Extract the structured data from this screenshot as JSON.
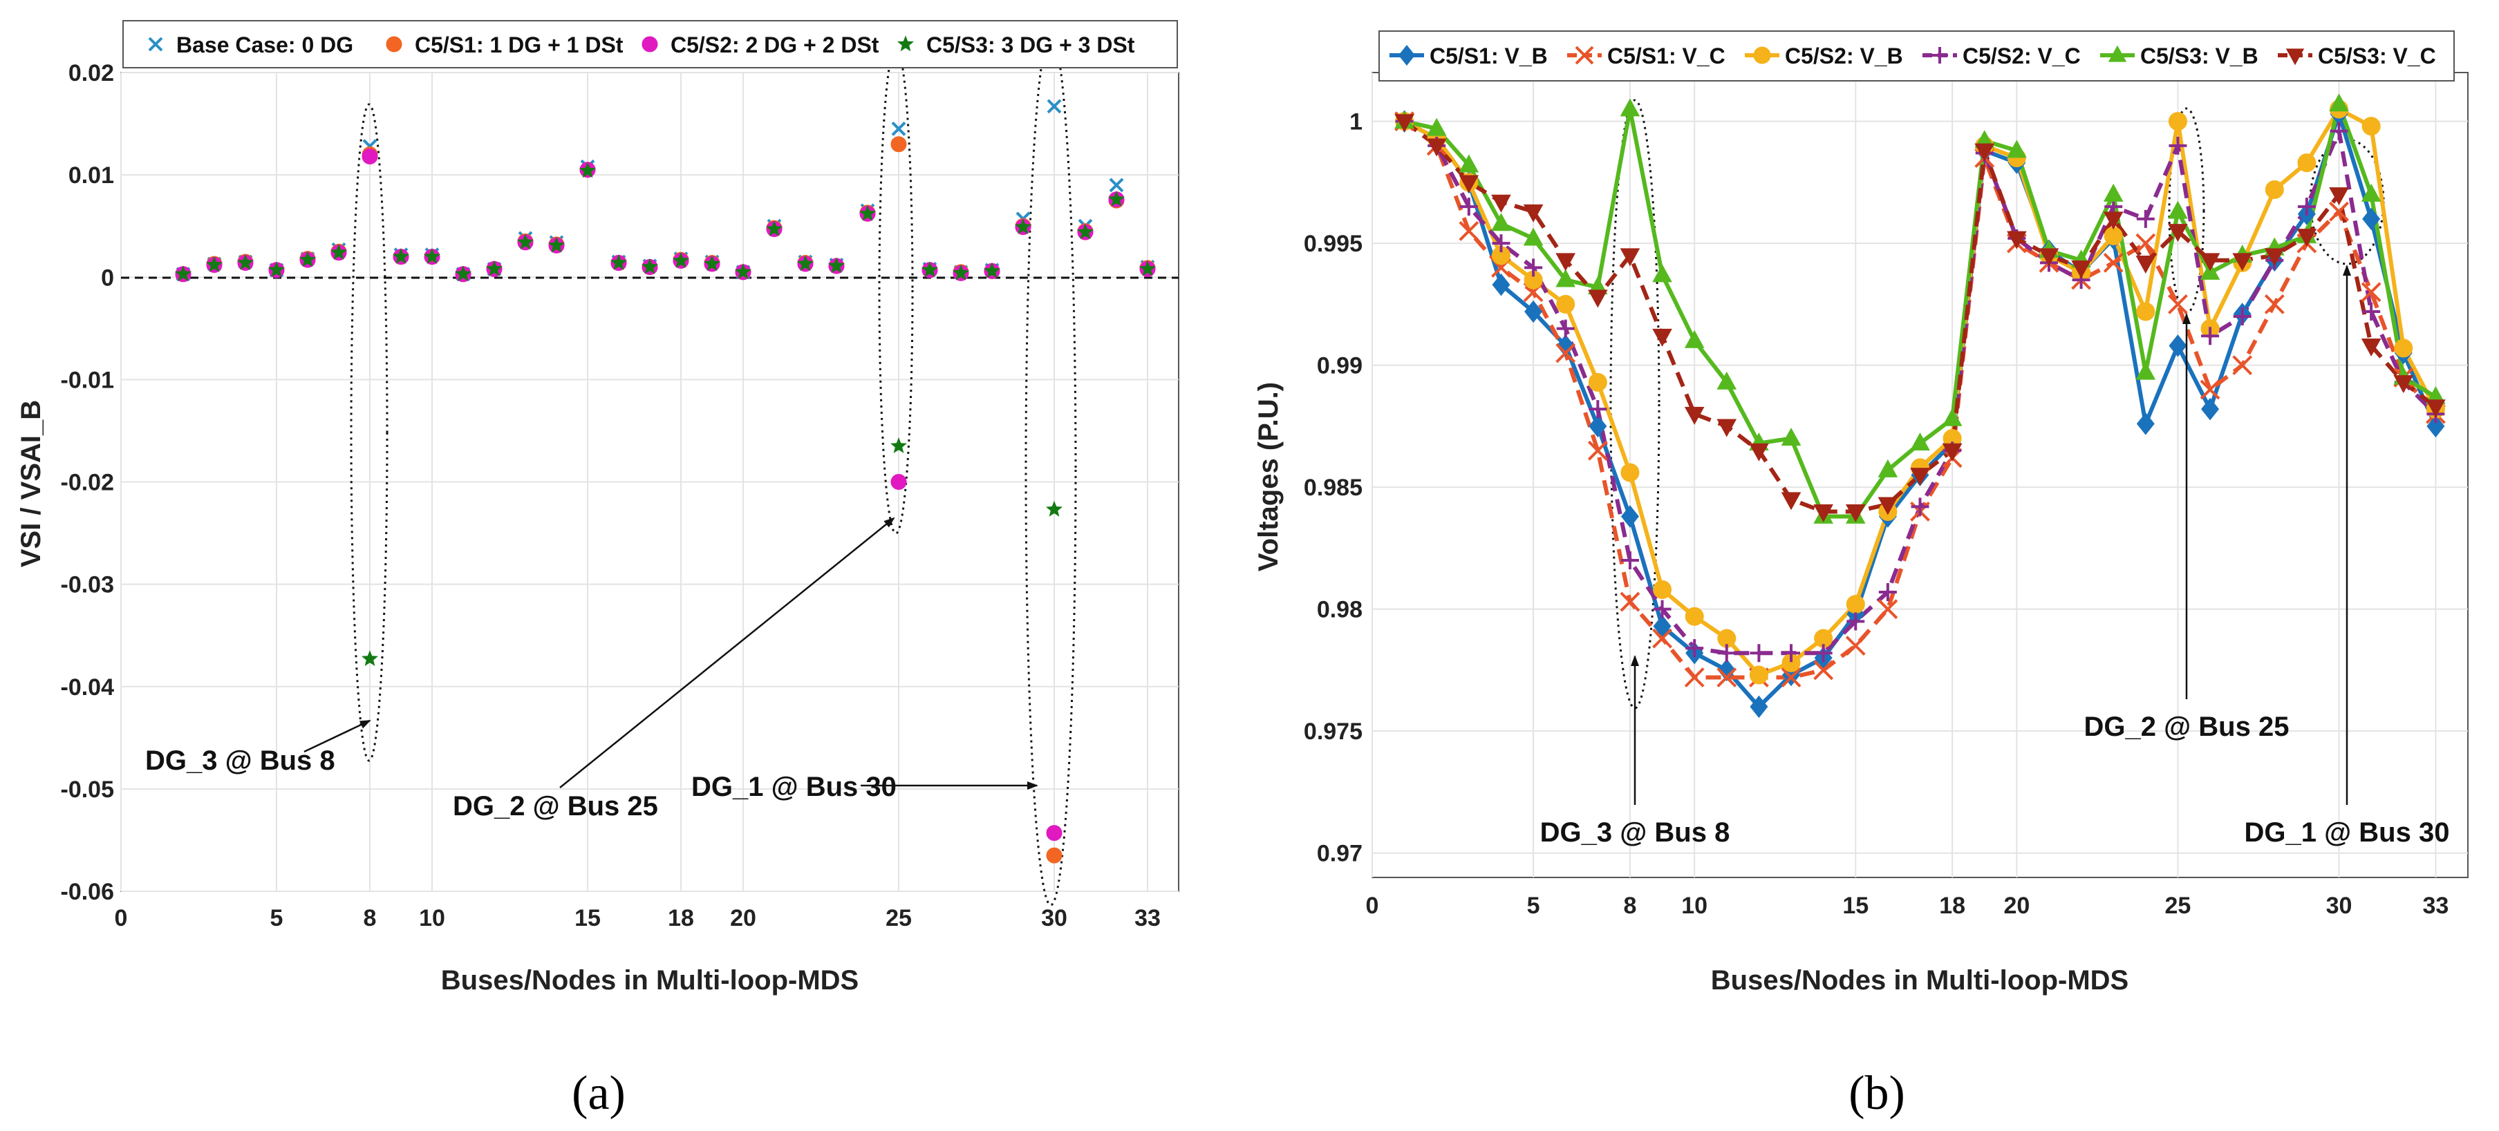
{
  "chart_data": [
    {
      "type": "scatter",
      "panel_caption": "(a)",
      "xlabel": "Buses/Nodes in Multi-loop-MDS",
      "ylabel": "VSI / VSAI_B",
      "xlim": [
        0,
        34
      ],
      "ylim": [
        -0.06,
        0.02
      ],
      "xticks": [
        "0",
        "5",
        "8",
        "10",
        "15",
        "18",
        "20",
        "25",
        "30",
        "33"
      ],
      "yticks": [
        "0.02",
        "0.01",
        "0",
        "-0.01",
        "-0.02",
        "-0.03",
        "-0.04",
        "-0.05",
        "-0.06"
      ],
      "grid": true,
      "legend_position": "top",
      "x": [
        2,
        3,
        4,
        5,
        6,
        7,
        8,
        9,
        10,
        11,
        12,
        13,
        14,
        15,
        16,
        17,
        18,
        19,
        20,
        21,
        22,
        23,
        24,
        25,
        26,
        27,
        28,
        29,
        30,
        31,
        32,
        33
      ],
      "series": [
        {
          "name": "Base Case: 0 DG",
          "marker": "x",
          "color": "#2a8fc7",
          "values": [
            0.0003,
            0.0013,
            0.0015,
            0.0007,
            0.0018,
            0.0027,
            0.0128,
            0.0022,
            0.0022,
            0.0003,
            0.0008,
            0.0038,
            0.0034,
            0.0108,
            0.0015,
            0.0011,
            0.0018,
            0.0015,
            0.0005,
            0.005,
            0.0015,
            0.0012,
            0.0065,
            0.0145,
            0.0008,
            0.0005,
            0.0007,
            0.0057,
            0.0167,
            0.005,
            0.009,
            0.001
          ]
        },
        {
          "name": "C5/S1: 1 DG + 1 DSt",
          "marker": "circle",
          "color": "#f26522",
          "values": [
            0.0003,
            0.0013,
            0.0015,
            0.0007,
            0.0018,
            0.0025,
            0.012,
            0.002,
            0.002,
            0.0003,
            0.0008,
            0.0035,
            0.0032,
            0.0105,
            0.0014,
            0.001,
            0.0017,
            0.0014,
            0.0005,
            0.0048,
            0.0014,
            0.0011,
            0.0063,
            0.013,
            0.0007,
            0.0005,
            0.0006,
            0.005,
            -0.0565,
            0.0045,
            0.0075,
            0.0009
          ]
        },
        {
          "name": "C5/S2: 2 DG + 2 DSt",
          "marker": "circle",
          "color": "#e019c0",
          "values": [
            0.0003,
            0.0012,
            0.0014,
            0.0007,
            0.0017,
            0.0024,
            0.0118,
            0.002,
            0.002,
            0.0003,
            0.0008,
            0.0034,
            0.0031,
            0.0105,
            0.0014,
            0.001,
            0.0016,
            0.0013,
            0.0005,
            0.0047,
            0.0013,
            0.0011,
            0.0062,
            -0.02,
            0.0007,
            0.0004,
            0.0006,
            0.0049,
            -0.0543,
            0.0044,
            0.0076,
            0.0008
          ]
        },
        {
          "name": "C5/S3: 3 DG + 3 DSt",
          "marker": "star",
          "color": "#137a13",
          "values": [
            0.0003,
            0.0012,
            0.0014,
            0.0007,
            0.0017,
            0.0024,
            -0.0373,
            0.002,
            0.002,
            0.0003,
            0.0008,
            0.0034,
            0.0031,
            0.0104,
            0.0014,
            0.001,
            0.0016,
            0.0013,
            0.0005,
            0.0047,
            0.0013,
            0.0011,
            0.0062,
            -0.0165,
            0.0007,
            0.0004,
            0.0006,
            0.0049,
            -0.0227,
            0.0044,
            0.0076,
            0.0008
          ]
        }
      ],
      "annotations": [
        "DG_3 @ Bus 8",
        "DG_2 @ Bus 25",
        "DG_1 @ Bus 30"
      ]
    },
    {
      "type": "line",
      "panel_caption": "(b)",
      "xlabel": "Buses/Nodes in Multi-loop-MDS",
      "ylabel": "Voltages (P.U.)",
      "xlim": [
        0,
        34
      ],
      "ylim": [
        0.969,
        1.002
      ],
      "xticks": [
        "0",
        "5",
        "8",
        "10",
        "15",
        "18",
        "20",
        "25",
        "30",
        "33"
      ],
      "yticks": [
        "1",
        "0.995",
        "0.99",
        "0.985",
        "0.98",
        "0.975",
        "0.97"
      ],
      "grid": true,
      "legend_position": "top",
      "x": [
        1,
        2,
        3,
        4,
        5,
        6,
        7,
        8,
        9,
        10,
        11,
        12,
        13,
        14,
        15,
        16,
        17,
        18,
        19,
        20,
        21,
        22,
        23,
        24,
        25,
        26,
        27,
        28,
        29,
        30,
        31,
        32,
        33
      ],
      "series": [
        {
          "name": "C5/S1: V_B",
          "marker": "diamond",
          "dash": "solid",
          "color": "#1a72bd",
          "values": [
            1.0,
            0.9993,
            0.9975,
            0.9933,
            0.9922,
            0.9908,
            0.9875,
            0.9838,
            0.9793,
            0.9782,
            0.9775,
            0.976,
            0.9773,
            0.978,
            0.9798,
            0.9838,
            0.9855,
            0.9868,
            0.9988,
            0.9983,
            0.9947,
            0.9938,
            0.9952,
            0.9876,
            0.9908,
            0.9882,
            0.9921,
            0.9943,
            0.9962,
            1.0003,
            0.996,
            0.9905,
            0.9875
          ]
        },
        {
          "name": "C5/S1: V_C",
          "marker": "x",
          "dash": "dash",
          "color": "#e8542a",
          "values": [
            1.0,
            0.999,
            0.9955,
            0.994,
            0.993,
            0.9905,
            0.9865,
            0.9803,
            0.9788,
            0.9772,
            0.9772,
            0.9772,
            0.9772,
            0.9775,
            0.9785,
            0.98,
            0.984,
            0.9862,
            0.9985,
            0.995,
            0.9942,
            0.9935,
            0.9942,
            0.995,
            0.9925,
            0.989,
            0.99,
            0.9925,
            0.995,
            0.9963,
            0.993,
            0.9895,
            0.988
          ]
        },
        {
          "name": "C5/S2: V_B",
          "marker": "circle",
          "dash": "solid",
          "color": "#f5b21a",
          "values": [
            1.0,
            0.9993,
            0.9975,
            0.9945,
            0.9935,
            0.9925,
            0.9893,
            0.9856,
            0.9808,
            0.9797,
            0.9788,
            0.9773,
            0.9778,
            0.9788,
            0.9802,
            0.984,
            0.9858,
            0.987,
            0.999,
            0.9985,
            0.9945,
            0.9938,
            0.9953,
            0.9922,
            1.0,
            0.9915,
            0.9942,
            0.9972,
            0.9983,
            1.0005,
            0.9998,
            0.9907,
            0.9882
          ]
        },
        {
          "name": "C5/S2: V_C",
          "marker": "plus",
          "dash": "dash",
          "color": "#8a2b8f",
          "values": [
            1.0,
            0.999,
            0.9965,
            0.995,
            0.994,
            0.9915,
            0.9882,
            0.982,
            0.98,
            0.9784,
            0.9782,
            0.9782,
            0.9782,
            0.9782,
            0.9795,
            0.9807,
            0.9842,
            0.9865,
            0.9987,
            0.9952,
            0.9942,
            0.9935,
            0.9965,
            0.996,
            0.999,
            0.9912,
            0.992,
            0.9943,
            0.9965,
            0.9996,
            0.9922,
            0.9893,
            0.988
          ]
        },
        {
          "name": "C5/S3: V_B",
          "marker": "triangle-up",
          "dash": "solid",
          "color": "#55b91e",
          "values": [
            1.0,
            0.9997,
            0.9982,
            0.9958,
            0.9952,
            0.9935,
            0.9932,
            1.0005,
            0.9937,
            0.991,
            0.9893,
            0.9868,
            0.987,
            0.9838,
            0.9838,
            0.9857,
            0.9868,
            0.9878,
            0.9992,
            0.9988,
            0.9947,
            0.9943,
            0.997,
            0.9897,
            0.9963,
            0.9938,
            0.9945,
            0.9948,
            0.9953,
            1.0007,
            0.997,
            0.9895,
            0.9887
          ]
        },
        {
          "name": "C5/S3: V_C",
          "marker": "triangle-down",
          "dash": "dash",
          "color": "#a32516",
          "values": [
            1.0,
            0.999,
            0.9975,
            0.9967,
            0.9963,
            0.9943,
            0.9928,
            0.9945,
            0.9912,
            0.988,
            0.9875,
            0.9865,
            0.9845,
            0.984,
            0.984,
            0.9843,
            0.9855,
            0.9865,
            0.9988,
            0.9952,
            0.9945,
            0.994,
            0.996,
            0.9942,
            0.9955,
            0.9943,
            0.9943,
            0.9945,
            0.9953,
            0.997,
            0.9908,
            0.9893,
            0.9883
          ]
        }
      ],
      "annotations": [
        "DG_3 @ Bus 8",
        "DG_2 @ Bus 25",
        "DG_1 @ Bus 30"
      ]
    }
  ]
}
